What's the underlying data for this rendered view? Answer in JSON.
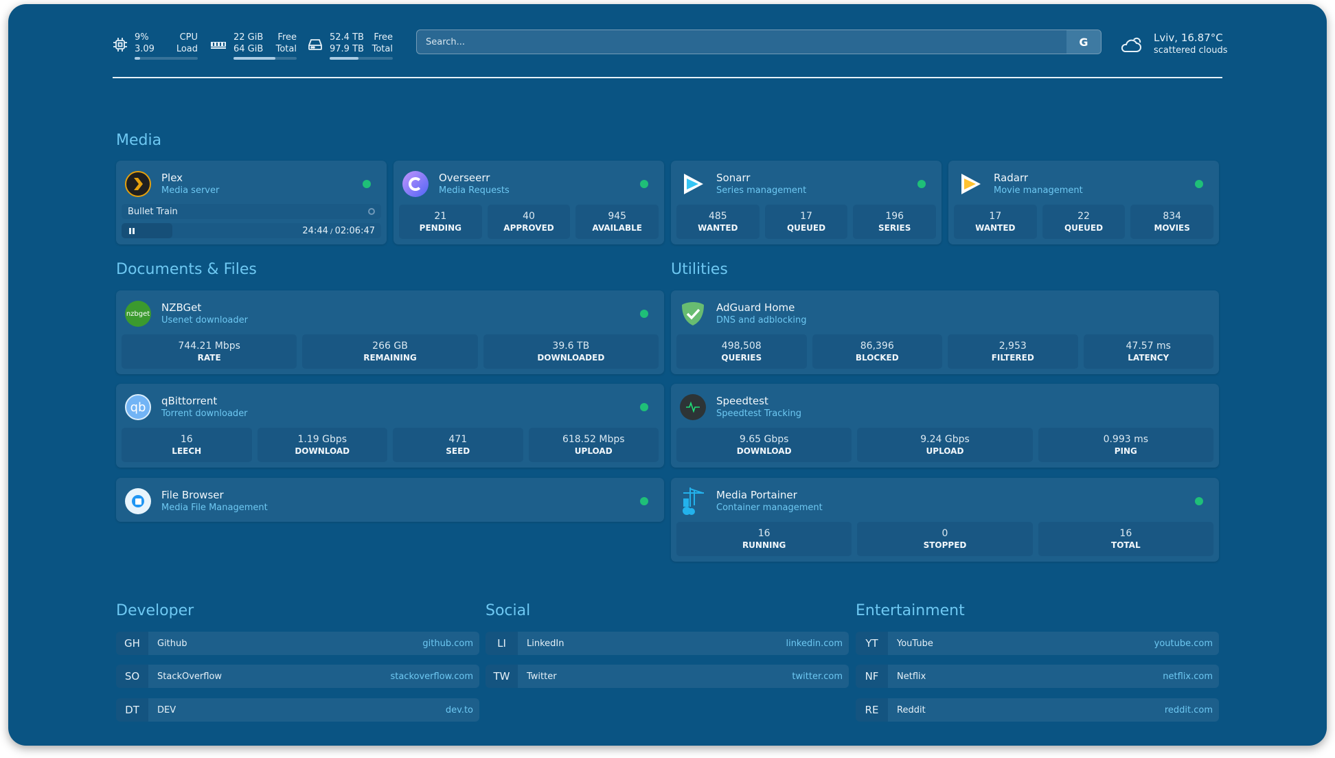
{
  "header": {
    "cpu": {
      "icon": "cpu-icon",
      "value": "9%",
      "label": "CPU",
      "value2": "3.09",
      "label2": "Load",
      "percent": 9
    },
    "memory": {
      "icon": "memory-icon",
      "value": "22 GiB",
      "label": "Free",
      "value2": "64 GiB",
      "label2": "Total",
      "percent": 66
    },
    "disk": {
      "icon": "disk-icon",
      "value": "52.4 TB",
      "label": "Free",
      "value2": "97.9 TB",
      "label2": "Total",
      "percent": 46
    },
    "search": {
      "placeholder": "Search...",
      "provider_label": "G"
    },
    "weather": {
      "icon": "cloud-sun-icon",
      "location_temp": "Lviv, 16.87°C",
      "condition": "scattered clouds"
    }
  },
  "colors": {
    "background": "#0a5483",
    "card": "#1d5f8b",
    "accent": "#6ec8f2",
    "status_ok": "#1fbf78"
  },
  "groups": {
    "media": "Media",
    "documents": "Documents & Files",
    "utilities": "Utilities",
    "developer": "Developer",
    "social": "Social",
    "entertainment": "Entertainment"
  },
  "services": [
    {
      "key": "plex",
      "name": "Plex",
      "description": "Media server",
      "icon": "plex-icon",
      "status": "online",
      "now_playing": {
        "title": "Bullet Train",
        "position": "24:44",
        "duration": "02:06:47",
        "state": "paused",
        "progress_percent": 19.5
      }
    },
    {
      "key": "overseerr",
      "name": "Overseerr",
      "description": "Media Requests",
      "icon": "overseerr-icon",
      "status": "online",
      "stats": [
        {
          "value": "21",
          "label": "PENDING"
        },
        {
          "value": "40",
          "label": "APPROVED"
        },
        {
          "value": "945",
          "label": "AVAILABLE"
        }
      ]
    },
    {
      "key": "sonarr",
      "name": "Sonarr",
      "description": "Series management",
      "icon": "sonarr-icon",
      "status": "online",
      "stats": [
        {
          "value": "485",
          "label": "WANTED"
        },
        {
          "value": "17",
          "label": "QUEUED"
        },
        {
          "value": "196",
          "label": "SERIES"
        }
      ]
    },
    {
      "key": "radarr",
      "name": "Radarr",
      "description": "Movie management",
      "icon": "radarr-icon",
      "status": "online",
      "stats": [
        {
          "value": "17",
          "label": "WANTED"
        },
        {
          "value": "22",
          "label": "QUEUED"
        },
        {
          "value": "834",
          "label": "MOVIES"
        }
      ]
    },
    {
      "key": "nzbget",
      "name": "NZBGet",
      "description": "Usenet downloader",
      "icon": "nzbget-icon",
      "icon_text": "nzbget",
      "status": "online",
      "stats": [
        {
          "value": "744.21 Mbps",
          "label": "RATE"
        },
        {
          "value": "266 GB",
          "label": "REMAINING"
        },
        {
          "value": "39.6 TB",
          "label": "DOWNLOADED"
        }
      ]
    },
    {
      "key": "qbittorrent",
      "name": "qBittorrent",
      "description": "Torrent downloader",
      "icon": "qbittorrent-icon",
      "icon_text": "qb",
      "status": "online",
      "stats": [
        {
          "value": "16",
          "label": "LEECH"
        },
        {
          "value": "1.19 Gbps",
          "label": "DOWNLOAD"
        },
        {
          "value": "471",
          "label": "SEED"
        },
        {
          "value": "618.52 Mbps",
          "label": "UPLOAD"
        }
      ]
    },
    {
      "key": "filebrowser",
      "name": "File Browser",
      "description": "Media File Management",
      "icon": "file-browser-icon",
      "status": "online"
    },
    {
      "key": "adguard",
      "name": "AdGuard Home",
      "description": "DNS and adblocking",
      "icon": "adguard-shield-icon",
      "stats": [
        {
          "value": "498,508",
          "label": "QUERIES"
        },
        {
          "value": "86,396",
          "label": "BLOCKED"
        },
        {
          "value": "2,953",
          "label": "FILTERED"
        },
        {
          "value": "47.57 ms",
          "label": "LATENCY"
        }
      ]
    },
    {
      "key": "speedtest",
      "name": "Speedtest",
      "description": "Speedtest Tracking",
      "icon": "speedtest-pulse-icon",
      "stats": [
        {
          "value": "9.65 Gbps",
          "label": "DOWNLOAD"
        },
        {
          "value": "9.24 Gbps",
          "label": "UPLOAD"
        },
        {
          "value": "0.993 ms",
          "label": "PING"
        }
      ]
    },
    {
      "key": "portainer",
      "name": "Media Portainer",
      "description": "Container management",
      "icon": "portainer-crane-icon",
      "status": "online",
      "stats": [
        {
          "value": "16",
          "label": "RUNNING"
        },
        {
          "value": "0",
          "label": "STOPPED"
        },
        {
          "value": "16",
          "label": "TOTAL"
        }
      ]
    }
  ],
  "bookmarks": {
    "developer": [
      {
        "abbr": "GH",
        "name": "Github",
        "url": "github.com"
      },
      {
        "abbr": "SO",
        "name": "StackOverflow",
        "url": "stackoverflow.com"
      },
      {
        "abbr": "DT",
        "name": "DEV",
        "url": "dev.to"
      }
    ],
    "social": [
      {
        "abbr": "LI",
        "name": "LinkedIn",
        "url": "linkedin.com"
      },
      {
        "abbr": "TW",
        "name": "Twitter",
        "url": "twitter.com"
      }
    ],
    "entertainment": [
      {
        "abbr": "YT",
        "name": "YouTube",
        "url": "youtube.com"
      },
      {
        "abbr": "NF",
        "name": "Netflix",
        "url": "netflix.com"
      },
      {
        "abbr": "RE",
        "name": "Reddit",
        "url": "reddit.com"
      }
    ]
  }
}
